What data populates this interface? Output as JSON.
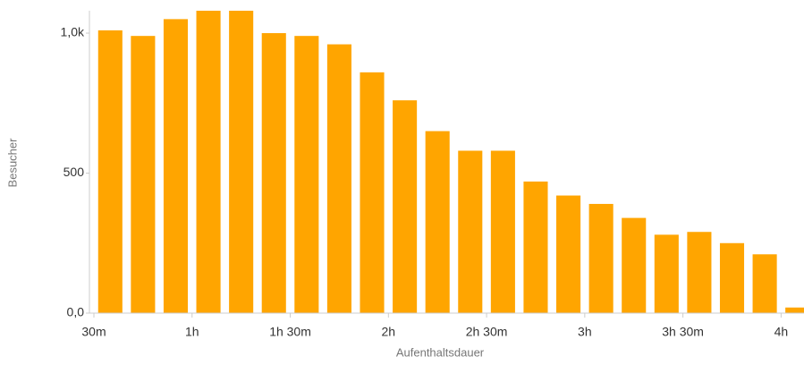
{
  "chart_data": {
    "type": "histogram",
    "x_label": "Aufenthaltsdauer",
    "y_label": "Besucher",
    "bins": [
      30,
      40,
      50,
      60,
      70,
      80,
      90,
      100,
      110,
      120,
      130,
      140,
      150,
      160,
      170,
      180,
      190,
      200,
      210,
      220,
      230,
      240,
      250
    ],
    "values": [
      1010,
      990,
      1050,
      1080,
      1080,
      1000,
      990,
      960,
      860,
      760,
      650,
      580,
      580,
      470,
      420,
      390,
      340,
      280,
      290,
      250,
      210,
      20
    ],
    "color": "#ffa500",
    "xlim": [
      30,
      247
    ],
    "xticks": [
      {
        "value": 30,
        "label": "30m"
      },
      {
        "value": 60,
        "label": "1h"
      },
      {
        "value": 90,
        "label": "1h 30m"
      },
      {
        "value": 120,
        "label": "2h"
      },
      {
        "value": 150,
        "label": "2h 30m"
      },
      {
        "value": 180,
        "label": "3h"
      },
      {
        "value": 210,
        "label": "3h 30m"
      },
      {
        "value": 240,
        "label": "4h"
      }
    ],
    "ylim": [
      0,
      1080
    ],
    "yticks": [
      {
        "value": 0,
        "label": "0,0"
      },
      {
        "value": 500,
        "label": "500"
      },
      {
        "value": 1000,
        "label": "1,0k"
      }
    ]
  }
}
